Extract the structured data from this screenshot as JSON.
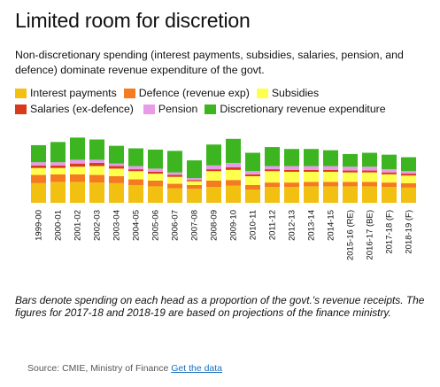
{
  "title": "Limited room for discretion",
  "subtitle": "Non-discretionary spending (interest payments, subsidies, salaries, pension, and defence) dominate revenue expenditure of the govt.",
  "note": "Bars denote spending on each head as a proportion of the govt.'s revenue receipts. The figures for 2017-18 and 2018-19 are based on projections of the finance ministry.",
  "source": {
    "text": "Source: CMIE, Ministry of Finance",
    "link_label": "Get the data"
  },
  "legend": [
    {
      "label": "Interest payments",
      "color": "#f2c011"
    },
    {
      "label": "Defence (revenue exp)",
      "color": "#f47b20"
    },
    {
      "label": "Subsidies",
      "color": "#ffff4d"
    },
    {
      "label": "Salaries (ex-defence)",
      "color": "#d9391c"
    },
    {
      "label": "Pension",
      "color": "#e89be9"
    },
    {
      "label": "Discretionary revenue expenditure",
      "color": "#3cb521"
    }
  ],
  "chart_data": {
    "type": "bar",
    "stacked": true,
    "categories": [
      "1999-00",
      "2000-01",
      "2001-02",
      "2002-03",
      "2003-04",
      "2004-05",
      "2005-06",
      "2006-07",
      "2007-08",
      "2008-09",
      "2009-10",
      "2010-11",
      "2011-12",
      "2012-13",
      "2013-14",
      "2014-15",
      "2015-16 (RE)",
      "2016-17 (BE)",
      "2017-18 (F)",
      "2018-19 (F)"
    ],
    "series": [
      {
        "name": "Interest payments",
        "color": "#f2c011",
        "values": [
          31,
          33,
          33,
          32,
          31,
          28,
          26,
          23,
          22,
          25,
          27,
          21,
          25,
          25,
          26,
          26,
          26,
          26,
          25,
          24
        ]
      },
      {
        "name": "Defence (revenue exp)",
        "color": "#f47b20",
        "values": [
          13,
          12,
          12,
          12,
          11,
          9,
          9,
          7,
          6,
          10,
          9,
          7,
          7,
          7,
          7,
          7,
          7,
          7,
          7,
          7
        ]
      },
      {
        "name": "Subsidies",
        "color": "#ffff4d",
        "values": [
          11,
          10,
          12,
          14,
          12,
          13,
          11,
          11,
          6,
          15,
          16,
          14,
          18,
          17,
          16,
          16,
          15,
          15,
          13,
          12
        ]
      },
      {
        "name": "Salaries (ex-defence)",
        "color": "#d9391c",
        "values": [
          4,
          4,
          5,
          5,
          4,
          3,
          3,
          3,
          2,
          3,
          4,
          3,
          3,
          3,
          3,
          3,
          3,
          3,
          3,
          3
        ]
      },
      {
        "name": "Pension",
        "color": "#e89be9",
        "values": [
          5,
          5,
          6,
          5,
          4,
          5,
          5,
          4,
          3,
          6,
          7,
          5,
          5,
          6,
          6,
          6,
          6,
          6,
          5,
          4
        ]
      },
      {
        "name": "Discretionary revenue expenditure",
        "color": "#3cb521",
        "values": [
          27,
          32,
          35,
          32,
          28,
          28,
          30,
          34,
          28,
          33,
          38,
          29,
          30,
          27,
          27,
          25,
          20,
          22,
          23,
          22
        ]
      }
    ]
  }
}
